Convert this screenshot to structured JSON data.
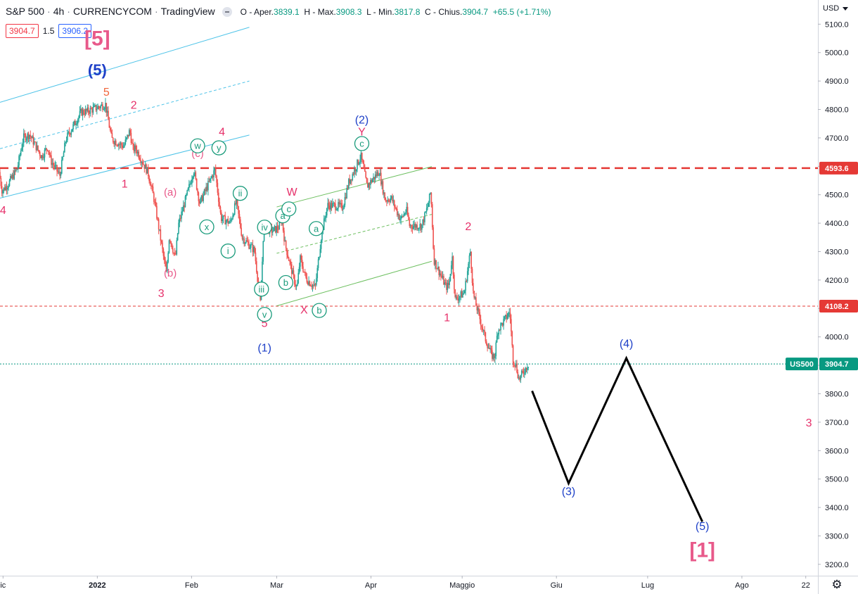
{
  "header": {
    "symbol": "S&P 500",
    "interval": "4h",
    "source": "CURRENCYCOM",
    "platform": "TradingView",
    "ohlc": {
      "open_label": "O - Aper.",
      "open": "3839.1",
      "high_label": "H - Max.",
      "high": "3908.3",
      "low_label": "L - Min.",
      "low": "3817.8",
      "close_label": "C - Chius.",
      "close": "3904.7",
      "change": "+65.5 (+1.71%)"
    },
    "sell_price": "3904.7",
    "spread": "1.5",
    "buy_price": "3906.2"
  },
  "currency": "USD",
  "chart_data": {
    "type": "line",
    "instrument": "S&P 500",
    "timeframe": "4h",
    "price_axis": {
      "ylim": [
        3160,
        5185
      ],
      "ticks": [
        5100,
        5000,
        4900,
        4800,
        4700,
        4600,
        4500,
        4400,
        4300,
        4200,
        4100,
        4000,
        3900,
        3800,
        3700,
        3600,
        3500,
        3400,
        3300,
        3200
      ],
      "tick_labels": [
        "5100.0",
        "5000.0",
        "4900.0",
        "4800.0",
        "4700.0",
        "4600.0",
        "4500.0",
        "4400.0",
        "4300.0",
        "4200.0",
        "4100.0",
        "4000.0",
        "3900.0",
        "3800.0",
        "3700.0",
        "3600.0",
        "3500.0",
        "3400.0",
        "3300.0",
        "3200.0"
      ]
    },
    "time_axis": {
      "xlim": [
        "2021-11-30",
        "2022-08-26"
      ],
      "ticks": [
        {
          "date": "2021-12-01",
          "label": "ic"
        },
        {
          "date": "2022-01-01",
          "label": "2022"
        },
        {
          "date": "2022-02-01",
          "label": "Feb"
        },
        {
          "date": "2022-03-01",
          "label": "Mar"
        },
        {
          "date": "2022-04-01",
          "label": "Apr"
        },
        {
          "date": "2022-05-01",
          "label": "Maggio"
        },
        {
          "date": "2022-06-01",
          "label": "Giu"
        },
        {
          "date": "2022-07-01",
          "label": "Lug"
        },
        {
          "date": "2022-08-01",
          "label": "Ago"
        },
        {
          "date": "2022-08-22",
          "label": "22"
        }
      ]
    },
    "price_path": [
      [
        "2021-11-30",
        4580
      ],
      [
        "2021-12-01",
        4513
      ],
      [
        "2021-12-03",
        4538
      ],
      [
        "2021-12-06",
        4592
      ],
      [
        "2021-12-08",
        4701
      ],
      [
        "2021-12-10",
        4712
      ],
      [
        "2021-12-14",
        4634
      ],
      [
        "2021-12-16",
        4669
      ],
      [
        "2021-12-17",
        4620
      ],
      [
        "2021-12-20",
        4568
      ],
      [
        "2021-12-22",
        4696
      ],
      [
        "2021-12-27",
        4791
      ],
      [
        "2021-12-29",
        4793
      ],
      [
        "2022-01-04",
        4818
      ],
      [
        "2022-01-06",
        4696
      ],
      [
        "2022-01-10",
        4670
      ],
      [
        "2022-01-12",
        4726
      ],
      [
        "2022-01-13",
        4660
      ],
      [
        "2022-01-14",
        4662
      ],
      [
        "2022-01-18",
        4577
      ],
      [
        "2022-01-20",
        4483
      ],
      [
        "2022-01-24",
        4222
      ],
      [
        "2022-01-25",
        4356
      ],
      [
        "2022-01-27",
        4275
      ],
      [
        "2022-01-28",
        4395
      ],
      [
        "2022-02-01",
        4546
      ],
      [
        "2022-02-02",
        4589
      ],
      [
        "2022-02-04",
        4470
      ],
      [
        "2022-02-09",
        4588
      ],
      [
        "2022-02-11",
        4418
      ],
      [
        "2022-02-14",
        4401
      ],
      [
        "2022-02-16",
        4475
      ],
      [
        "2022-02-18",
        4349
      ],
      [
        "2022-02-22",
        4304
      ],
      [
        "2022-02-24",
        4114
      ],
      [
        "2022-02-25",
        4384
      ],
      [
        "2022-02-28",
        4373
      ],
      [
        "2022-03-02",
        4386
      ],
      [
        "2022-03-03",
        4416
      ],
      [
        "2022-03-04",
        4329
      ],
      [
        "2022-03-07",
        4201
      ],
      [
        "2022-03-08",
        4170
      ],
      [
        "2022-03-09",
        4277
      ],
      [
        "2022-03-11",
        4204
      ],
      [
        "2022-03-14",
        4173
      ],
      [
        "2022-03-16",
        4357
      ],
      [
        "2022-03-18",
        4463
      ],
      [
        "2022-03-21",
        4461
      ],
      [
        "2022-03-23",
        4456
      ],
      [
        "2022-03-25",
        4543
      ],
      [
        "2022-03-29",
        4637
      ],
      [
        "2022-03-31",
        4530
      ],
      [
        "2022-04-04",
        4582
      ],
      [
        "2022-04-06",
        4481
      ],
      [
        "2022-04-08",
        4488
      ],
      [
        "2022-04-11",
        4412
      ],
      [
        "2022-04-13",
        4446
      ],
      [
        "2022-04-14",
        4392
      ],
      [
        "2022-04-18",
        4391
      ],
      [
        "2022-04-20",
        4460
      ],
      [
        "2022-04-21",
        4512
      ],
      [
        "2022-04-22",
        4272
      ],
      [
        "2022-04-26",
        4175
      ],
      [
        "2022-04-27",
        4183
      ],
      [
        "2022-04-28",
        4288
      ],
      [
        "2022-04-29",
        4132
      ],
      [
        "2022-05-02",
        4155
      ],
      [
        "2022-05-04",
        4300
      ],
      [
        "2022-05-05",
        4146
      ],
      [
        "2022-05-09",
        3991
      ],
      [
        "2022-05-11",
        3935
      ],
      [
        "2022-05-12",
        3930
      ],
      [
        "2022-05-13",
        4023
      ],
      [
        "2022-05-17",
        4088
      ],
      [
        "2022-05-18",
        3923
      ],
      [
        "2022-05-19",
        3900
      ],
      [
        "2022-05-20",
        3850
      ],
      [
        "2022-05-23",
        3905
      ]
    ],
    "projection": {
      "color": "#000000",
      "points": [
        {
          "date": "2022-05-24",
          "price": 3810
        },
        {
          "date": "2022-06-05",
          "price": 3485,
          "label": "(3)"
        },
        {
          "date": "2022-06-24",
          "price": 3925,
          "label": "(4)"
        },
        {
          "date": "2022-07-19",
          "price": 3350,
          "label": "(5)"
        }
      ]
    },
    "horizontal_lines": [
      {
        "price": 4593.6,
        "label": "4593.6",
        "style": "dashed-thick",
        "color": "#e53935"
      },
      {
        "price": 4108.2,
        "label": "4108.2",
        "style": "dashed-thin",
        "color": "#e53935"
      },
      {
        "price": 3904.7,
        "label": "3904.7",
        "symbol_label": "US500",
        "style": "dotted",
        "color": "#089981"
      }
    ],
    "channels": [
      {
        "color": "#4dc3e8",
        "lines": [
          {
            "from": [
              "2021-11-30",
              4825
            ],
            "to": [
              "2022-02-20",
              5089
            ]
          },
          {
            "from": [
              "2021-11-30",
              4662
            ],
            "to": [
              "2022-02-20",
              4900
            ],
            "dashed": true
          },
          {
            "from": [
              "2021-11-30",
              4488
            ],
            "to": [
              "2022-02-20",
              4710
            ]
          }
        ]
      },
      {
        "color": "#6cbf5f",
        "lines": [
          {
            "from": [
              "2022-03-01",
              4457
            ],
            "to": [
              "2022-04-21",
              4599
            ]
          },
          {
            "from": [
              "2022-03-01",
              4294
            ],
            "to": [
              "2022-04-21",
              4431
            ],
            "dashed": true
          },
          {
            "from": [
              "2022-03-01",
              4109
            ],
            "to": [
              "2022-04-21",
              4266
            ]
          }
        ]
      }
    ],
    "wave_labels": [
      {
        "text": "[5]",
        "date": "2022-01-01",
        "price": 5025,
        "color": "#e8598a",
        "size": 30
      },
      {
        "text": "(5)",
        "date": "2022-01-01",
        "price": 4920,
        "color": "#1e40c8",
        "size": 22
      },
      {
        "text": "5",
        "date": "2022-01-04",
        "price": 4848,
        "color": "#f0653a",
        "size": 16
      },
      {
        "text": "2",
        "date": "2022-01-13",
        "price": 4802,
        "color": "#e6306a",
        "size": 16
      },
      {
        "text": "1",
        "date": "2022-01-10",
        "price": 4525,
        "color": "#e6306a",
        "size": 16
      },
      {
        "text": "4",
        "date": "2021-12-01",
        "price": 4432,
        "color": "#e6306a",
        "size": 16
      },
      {
        "text": "(a)",
        "date": "2022-01-25",
        "price": 4497,
        "color": "#e8598a",
        "size": 15
      },
      {
        "text": "(b)",
        "date": "2022-01-25",
        "price": 4212,
        "color": "#e8598a",
        "size": 15
      },
      {
        "text": "3",
        "date": "2022-01-22",
        "price": 4140,
        "color": "#e6306a",
        "size": 16
      },
      {
        "text": "(c)",
        "date": "2022-02-03",
        "price": 4633,
        "color": "#e8598a",
        "size": 15
      },
      {
        "text": "4",
        "date": "2022-02-11",
        "price": 4709,
        "color": "#e6306a",
        "size": 16
      },
      {
        "text": "W",
        "date": "2022-03-06",
        "price": 4497,
        "color": "#e6306a",
        "size": 16
      },
      {
        "text": "X",
        "date": "2022-03-10",
        "price": 4082,
        "color": "#e6306a",
        "size": 16
      },
      {
        "text": "5",
        "date": "2022-02-25",
        "price": 4035,
        "color": "#e6306a",
        "size": 16
      },
      {
        "text": "(1)",
        "date": "2022-02-25",
        "price": 3948,
        "color": "#1e40c8",
        "size": 16
      },
      {
        "text": "(2)",
        "date": "2022-03-29",
        "price": 4750,
        "color": "#1e40c8",
        "size": 16
      },
      {
        "text": "Y",
        "date": "2022-03-29",
        "price": 4709,
        "color": "#e6306a",
        "size": 16
      },
      {
        "text": "2",
        "date": "2022-05-03",
        "price": 4375,
        "color": "#e6306a",
        "size": 16
      },
      {
        "text": "1",
        "date": "2022-04-26",
        "price": 4055,
        "color": "#e6306a",
        "size": 16
      },
      {
        "text": "(3)",
        "date": "2022-06-05",
        "price": 3444,
        "color": "#1e40c8",
        "size": 16
      },
      {
        "text": "(4)",
        "date": "2022-06-24",
        "price": 3963,
        "color": "#1e40c8",
        "size": 16
      },
      {
        "text": "(5)",
        "date": "2022-07-19",
        "price": 3321,
        "color": "#1e40c8",
        "size": 16
      },
      {
        "text": "[1]",
        "date": "2022-07-19",
        "price": 3225,
        "color": "#e8598a",
        "size": 30
      },
      {
        "text": "3",
        "date": "2022-08-23",
        "price": 3685,
        "color": "#e6306a",
        "size": 16
      }
    ],
    "circled_labels": [
      {
        "text": "w",
        "date": "2022-02-03",
        "price": 4672
      },
      {
        "text": "y",
        "date": "2022-02-10",
        "price": 4665
      },
      {
        "text": "ii",
        "date": "2022-02-17",
        "price": 4505
      },
      {
        "text": "x",
        "date": "2022-02-06",
        "price": 4387
      },
      {
        "text": "i",
        "date": "2022-02-13",
        "price": 4302
      },
      {
        "text": "iv",
        "date": "2022-02-25",
        "price": 4386
      },
      {
        "text": "iii",
        "date": "2022-02-24",
        "price": 4168
      },
      {
        "text": "v",
        "date": "2022-02-25",
        "price": 4079
      },
      {
        "text": "a",
        "date": "2022-03-03",
        "price": 4426
      },
      {
        "text": "c",
        "date": "2022-03-05",
        "price": 4450
      },
      {
        "text": "b",
        "date": "2022-03-04",
        "price": 4191
      },
      {
        "text": "a",
        "date": "2022-03-14",
        "price": 4381
      },
      {
        "text": "b",
        "date": "2022-03-15",
        "price": 4093
      },
      {
        "text": "c",
        "date": "2022-03-29",
        "price": 4680
      }
    ]
  }
}
